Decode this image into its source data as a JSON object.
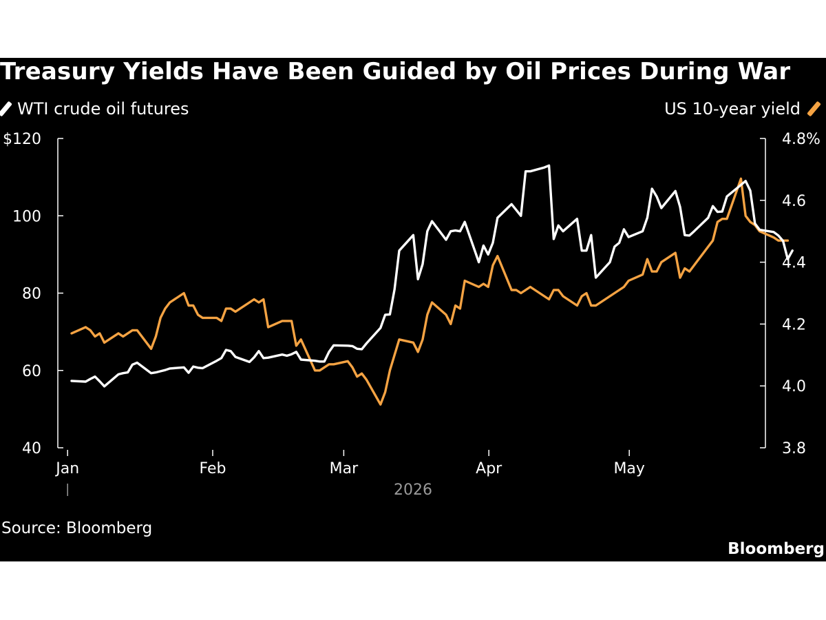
{
  "chart_data": {
    "type": "line",
    "title": "Treasury Yields Have Been Guided by Oil Prices During War",
    "x_axis_year": "2026",
    "x_ticks": [
      "Jan",
      "Feb",
      "Mar",
      "Apr",
      "May"
    ],
    "left_axis": {
      "ticks": [
        "$120",
        "100",
        "80",
        "60",
        "40"
      ],
      "ylim": [
        40,
        120
      ]
    },
    "right_axis": {
      "ticks": [
        "4.8%",
        "4.6",
        "4.4",
        "4.2",
        "4.0",
        "3.8"
      ],
      "ylim": [
        3.8,
        4.8
      ]
    },
    "legend_placement": "top",
    "grid": false,
    "source": "Source: Bloomberg",
    "brand": "Bloomberg",
    "series": [
      {
        "name": "WTI crude oil futures",
        "axis": "left",
        "color": "#ffffff",
        "points": [
          [
            "2026-01-02",
            57.3
          ],
          [
            "2026-01-05",
            57.1
          ],
          [
            "2026-01-06",
            57.8
          ],
          [
            "2026-01-07",
            58.4
          ],
          [
            "2026-01-08",
            57.2
          ],
          [
            "2026-01-09",
            55.9
          ],
          [
            "2026-01-12",
            59.0
          ],
          [
            "2026-01-13",
            59.3
          ],
          [
            "2026-01-14",
            59.5
          ],
          [
            "2026-01-15",
            61.5
          ],
          [
            "2026-01-16",
            62.0
          ],
          [
            "2026-01-19",
            59.3
          ],
          [
            "2026-01-20",
            59.5
          ],
          [
            "2026-01-21",
            59.8
          ],
          [
            "2026-01-22",
            60.1
          ],
          [
            "2026-01-23",
            60.5
          ],
          [
            "2026-01-26",
            60.8
          ],
          [
            "2026-01-27",
            59.4
          ],
          [
            "2026-01-28",
            61.0
          ],
          [
            "2026-01-29",
            60.7
          ],
          [
            "2026-01-30",
            60.6
          ],
          [
            "2026-02-02",
            62.5
          ],
          [
            "2026-02-03",
            63.2
          ],
          [
            "2026-02-04",
            65.3
          ],
          [
            "2026-02-05",
            65.0
          ],
          [
            "2026-02-06",
            63.5
          ],
          [
            "2026-02-09",
            62.2
          ],
          [
            "2026-02-10",
            63.4
          ],
          [
            "2026-02-11",
            65.0
          ],
          [
            "2026-02-12",
            63.2
          ],
          [
            "2026-02-13",
            63.3
          ],
          [
            "2026-02-16",
            64.1
          ],
          [
            "2026-02-17",
            63.8
          ],
          [
            "2026-02-18",
            64.2
          ],
          [
            "2026-02-19",
            64.8
          ],
          [
            "2026-02-20",
            62.8
          ],
          [
            "2026-02-23",
            62.5
          ],
          [
            "2026-02-24",
            62.3
          ],
          [
            "2026-02-25",
            62.3
          ],
          [
            "2026-02-26",
            64.8
          ],
          [
            "2026-02-27",
            66.5
          ],
          [
            "2026-03-02",
            66.4
          ],
          [
            "2026-03-03",
            66.3
          ],
          [
            "2026-03-04",
            65.6
          ],
          [
            "2026-03-05",
            65.5
          ],
          [
            "2026-03-06",
            67.0
          ],
          [
            "2026-03-09",
            71.0
          ],
          [
            "2026-03-10",
            74.4
          ],
          [
            "2026-03-11",
            74.5
          ],
          [
            "2026-03-12",
            81.0
          ],
          [
            "2026-03-13",
            91.0
          ],
          [
            "2026-03-16",
            95.0
          ],
          [
            "2026-03-17",
            83.6
          ],
          [
            "2026-03-18",
            87.5
          ],
          [
            "2026-03-19",
            96.0
          ],
          [
            "2026-03-20",
            98.6
          ],
          [
            "2026-03-23",
            93.8
          ],
          [
            "2026-03-24",
            96.0
          ],
          [
            "2026-03-25",
            96.2
          ],
          [
            "2026-03-26",
            96.0
          ],
          [
            "2026-03-27",
            98.4
          ],
          [
            "2026-03-30",
            88.0
          ],
          [
            "2026-03-31",
            92.3
          ],
          [
            "2026-04-01",
            90.0
          ],
          [
            "2026-04-02",
            93.0
          ],
          [
            "2026-04-03",
            99.5
          ],
          [
            "2026-04-06",
            103.0
          ],
          [
            "2026-04-07",
            101.5
          ],
          [
            "2026-04-08",
            100.0
          ],
          [
            "2026-04-09",
            111.5
          ],
          [
            "2026-04-10",
            111.5
          ],
          [
            "2026-04-13",
            112.5
          ],
          [
            "2026-04-14",
            113.0
          ],
          [
            "2026-04-15",
            94.0
          ],
          [
            "2026-04-16",
            97.5
          ],
          [
            "2026-04-17",
            96.0
          ],
          [
            "2026-04-20",
            99.2
          ],
          [
            "2026-04-21",
            91.0
          ],
          [
            "2026-04-22",
            91.0
          ],
          [
            "2026-04-23",
            95.0
          ],
          [
            "2026-04-24",
            84.0
          ],
          [
            "2026-04-27",
            88.0
          ],
          [
            "2026-04-28",
            92.0
          ],
          [
            "2026-04-29",
            93.0
          ],
          [
            "2026-04-30",
            96.5
          ],
          [
            "2026-05-01",
            94.5
          ],
          [
            "2026-05-04",
            96.0
          ],
          [
            "2026-05-05",
            99.5
          ],
          [
            "2026-05-06",
            107.0
          ],
          [
            "2026-05-07",
            105.0
          ],
          [
            "2026-05-08",
            102.0
          ],
          [
            "2026-05-11",
            106.4
          ],
          [
            "2026-05-12",
            102.3
          ],
          [
            "2026-05-13",
            95.0
          ],
          [
            "2026-05-14",
            94.9
          ],
          [
            "2026-05-15",
            96.0
          ],
          [
            "2026-05-18",
            99.5
          ],
          [
            "2026-05-19",
            102.5
          ],
          [
            "2026-05-20",
            101.0
          ],
          [
            "2026-05-21",
            101.1
          ],
          [
            "2026-05-22",
            105.0
          ],
          [
            "2026-05-25",
            108.0
          ],
          [
            "2026-05-26",
            109.0
          ],
          [
            "2026-05-27",
            106.5
          ],
          [
            "2026-05-28",
            98.0
          ],
          [
            "2026-05-29",
            96.4
          ],
          [
            "2026-06-01",
            95.8
          ],
          [
            "2026-06-02",
            94.9
          ],
          [
            "2026-06-03",
            93.5
          ],
          [
            "2026-06-04",
            88.8
          ],
          [
            "2026-06-05",
            91.0
          ]
        ]
      },
      {
        "name": "US 10-year yield",
        "axis": "right",
        "color": "#f5a343",
        "points": [
          [
            "2026-01-02",
            4.17
          ],
          [
            "2026-01-05",
            4.19
          ],
          [
            "2026-01-06",
            4.18
          ],
          [
            "2026-01-07",
            4.16
          ],
          [
            "2026-01-08",
            4.17
          ],
          [
            "2026-01-09",
            4.14
          ],
          [
            "2026-01-12",
            4.17
          ],
          [
            "2026-01-13",
            4.16
          ],
          [
            "2026-01-14",
            4.17
          ],
          [
            "2026-01-15",
            4.18
          ],
          [
            "2026-01-16",
            4.18
          ],
          [
            "2026-01-19",
            4.12
          ],
          [
            "2026-01-20",
            4.16
          ],
          [
            "2026-01-21",
            4.22
          ],
          [
            "2026-01-22",
            4.25
          ],
          [
            "2026-01-23",
            4.27
          ],
          [
            "2026-01-26",
            4.3
          ],
          [
            "2026-01-27",
            4.26
          ],
          [
            "2026-01-28",
            4.26
          ],
          [
            "2026-01-29",
            4.23
          ],
          [
            "2026-01-30",
            4.22
          ],
          [
            "2026-02-02",
            4.22
          ],
          [
            "2026-02-03",
            4.21
          ],
          [
            "2026-02-04",
            4.25
          ],
          [
            "2026-02-05",
            4.25
          ],
          [
            "2026-02-06",
            4.24
          ],
          [
            "2026-02-09",
            4.27
          ],
          [
            "2026-02-10",
            4.28
          ],
          [
            "2026-02-11",
            4.27
          ],
          [
            "2026-02-12",
            4.28
          ],
          [
            "2026-02-13",
            4.19
          ],
          [
            "2026-02-16",
            4.21
          ],
          [
            "2026-02-17",
            4.21
          ],
          [
            "2026-02-18",
            4.21
          ],
          [
            "2026-02-19",
            4.13
          ],
          [
            "2026-02-20",
            4.15
          ],
          [
            "2026-02-23",
            4.05
          ],
          [
            "2026-02-24",
            4.05
          ],
          [
            "2026-02-25",
            4.06
          ],
          [
            "2026-02-26",
            4.07
          ],
          [
            "2026-02-27",
            4.07
          ],
          [
            "2026-03-02",
            4.08
          ],
          [
            "2026-03-03",
            4.06
          ],
          [
            "2026-03-04",
            4.03
          ],
          [
            "2026-03-05",
            4.04
          ],
          [
            "2026-03-06",
            4.02
          ],
          [
            "2026-03-09",
            3.94
          ],
          [
            "2026-03-10",
            3.98
          ],
          [
            "2026-03-11",
            4.05
          ],
          [
            "2026-03-12",
            4.1
          ],
          [
            "2026-03-13",
            4.15
          ],
          [
            "2026-03-16",
            4.14
          ],
          [
            "2026-03-17",
            4.11
          ],
          [
            "2026-03-18",
            4.15
          ],
          [
            "2026-03-19",
            4.23
          ],
          [
            "2026-03-20",
            4.27
          ],
          [
            "2026-03-23",
            4.23
          ],
          [
            "2026-03-24",
            4.2
          ],
          [
            "2026-03-25",
            4.26
          ],
          [
            "2026-03-26",
            4.25
          ],
          [
            "2026-03-27",
            4.34
          ],
          [
            "2026-03-30",
            4.32
          ],
          [
            "2026-03-31",
            4.33
          ],
          [
            "2026-04-01",
            4.32
          ],
          [
            "2026-04-02",
            4.39
          ],
          [
            "2026-04-03",
            4.42
          ],
          [
            "2026-04-06",
            4.31
          ],
          [
            "2026-04-07",
            4.31
          ],
          [
            "2026-04-08",
            4.3
          ],
          [
            "2026-04-09",
            4.31
          ],
          [
            "2026-04-10",
            4.32
          ],
          [
            "2026-04-13",
            4.29
          ],
          [
            "2026-04-14",
            4.28
          ],
          [
            "2026-04-15",
            4.31
          ],
          [
            "2026-04-16",
            4.31
          ],
          [
            "2026-04-17",
            4.29
          ],
          [
            "2026-04-20",
            4.26
          ],
          [
            "2026-04-21",
            4.29
          ],
          [
            "2026-04-22",
            4.3
          ],
          [
            "2026-04-23",
            4.26
          ],
          [
            "2026-04-24",
            4.26
          ],
          [
            "2026-04-27",
            4.29
          ],
          [
            "2026-04-28",
            4.3
          ],
          [
            "2026-04-29",
            4.31
          ],
          [
            "2026-04-30",
            4.32
          ],
          [
            "2026-05-01",
            4.34
          ],
          [
            "2026-05-04",
            4.36
          ],
          [
            "2026-05-05",
            4.41
          ],
          [
            "2026-05-06",
            4.37
          ],
          [
            "2026-05-07",
            4.37
          ],
          [
            "2026-05-08",
            4.4
          ],
          [
            "2026-05-11",
            4.43
          ],
          [
            "2026-05-12",
            4.35
          ],
          [
            "2026-05-13",
            4.38
          ],
          [
            "2026-05-14",
            4.37
          ],
          [
            "2026-05-15",
            4.39
          ],
          [
            "2026-05-18",
            4.45
          ],
          [
            "2026-05-19",
            4.47
          ],
          [
            "2026-05-20",
            4.53
          ],
          [
            "2026-05-21",
            4.54
          ],
          [
            "2026-05-22",
            4.54
          ],
          [
            "2026-05-25",
            4.67
          ],
          [
            "2026-05-26",
            4.55
          ],
          [
            "2026-05-27",
            4.53
          ],
          [
            "2026-05-28",
            4.52
          ],
          [
            "2026-05-29",
            4.5
          ],
          [
            "2026-06-01",
            4.48
          ],
          [
            "2026-06-02",
            4.47
          ],
          [
            "2026-06-03",
            4.47
          ],
          [
            "2026-06-04",
            4.47
          ]
        ]
      }
    ]
  }
}
